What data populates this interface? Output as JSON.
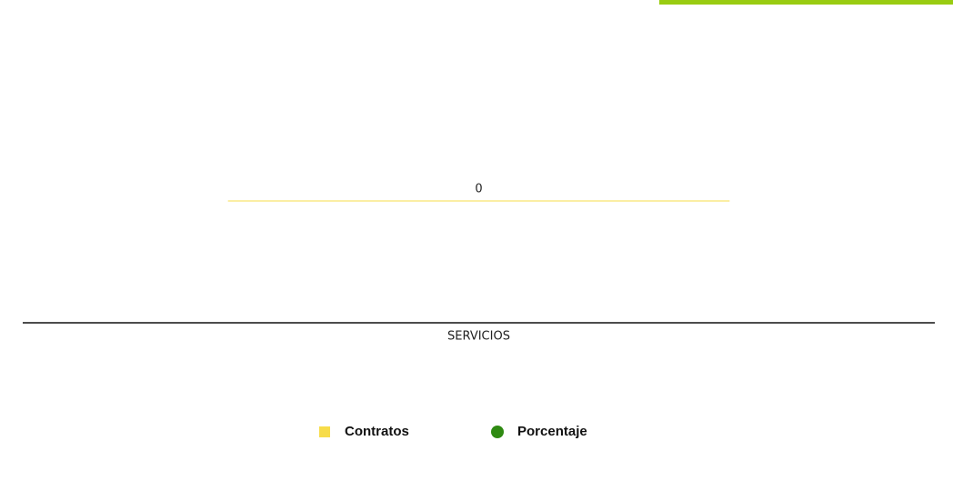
{
  "chart_data": {
    "type": "bar",
    "categories": [
      "SERVICIOS"
    ],
    "series": [
      {
        "name": "Contratos",
        "color": "#f7dc4a",
        "values": [
          0
        ]
      },
      {
        "name": "Porcentaje",
        "color": "#2f8a12",
        "values": [
          null
        ]
      }
    ],
    "ylim": [
      -1,
      1
    ],
    "legend": "bottom"
  }
}
